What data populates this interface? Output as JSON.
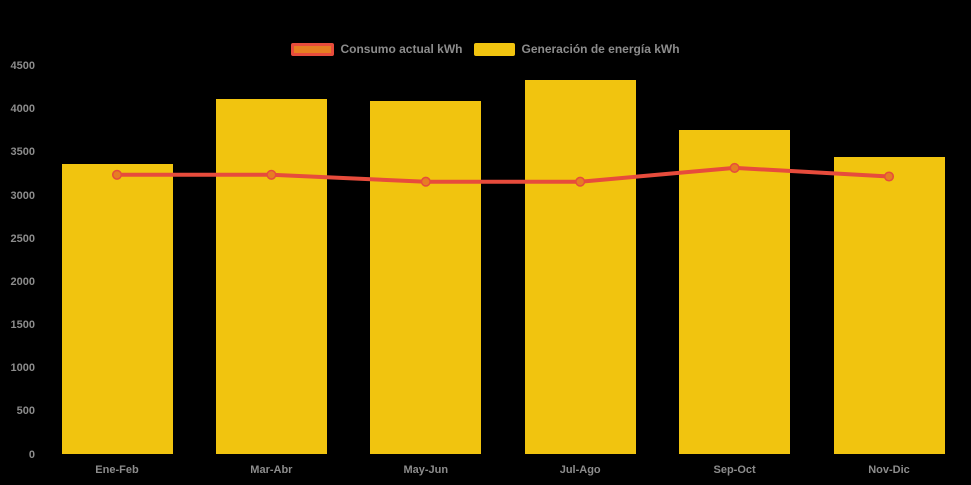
{
  "colors": {
    "background": "#000000",
    "bar_fill": "#F1C40F",
    "line_stroke": "#E74C3C",
    "marker_fill": "#E67E22",
    "axis_text": "#8C8C8C",
    "legend_text": "#8C8C8C"
  },
  "legend": {
    "items": [
      {
        "label": "Consumo actual kWh",
        "series": "line",
        "swatch_fill": "#E67E22",
        "swatch_border": "#E74C3C"
      },
      {
        "label": "Generación de energía kWh",
        "series": "bar",
        "swatch_fill": "#F1C40F",
        "swatch_border": ""
      }
    ]
  },
  "chart_data": {
    "type": "bar",
    "title": "",
    "xlabel": "",
    "ylabel": "",
    "categories": [
      "Ene-Feb",
      "Mar-Abr",
      "May-Jun",
      "Jul-Ago",
      "Sep-Oct",
      "Nov-Dic"
    ],
    "series": [
      {
        "name": "Generación de energía kWh",
        "type": "bar",
        "color": "#F1C40F",
        "values": [
          3370,
          4120,
          4100,
          4340,
          3760,
          3450
        ]
      },
      {
        "name": "Consumo actual kWh",
        "type": "line",
        "color": "#E74C3C",
        "marker_color": "#E67E22",
        "values": [
          3240,
          3240,
          3160,
          3160,
          3320,
          3220
        ]
      }
    ],
    "ylim": [
      0,
      4500
    ],
    "y_ticks": [
      0,
      500,
      1000,
      1500,
      2000,
      2500,
      3000,
      3500,
      4000,
      4500
    ],
    "grid": false,
    "legend_position": "top-center",
    "background": "black"
  }
}
